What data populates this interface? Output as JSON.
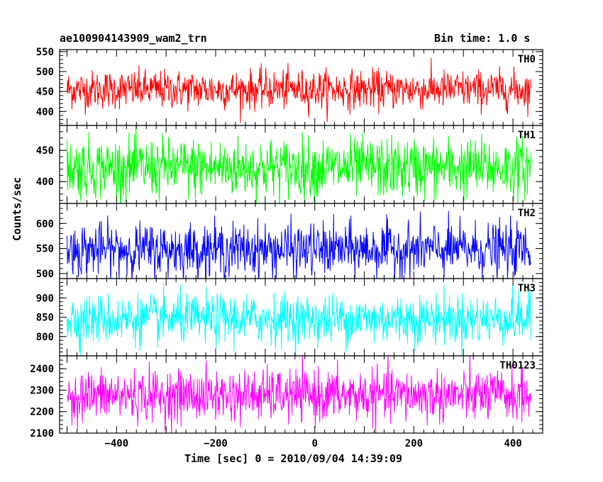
{
  "header": {
    "title": "ae100904143909_wam2_trn",
    "bin_time": "Bin time: 1.0 s"
  },
  "chart_data": {
    "type": "line",
    "title": "ae100904143909_wam2_trn",
    "subtitle": "Bin time: 1.0 s",
    "xlabel": "Time [sec] 0 = 2010/09/04 14:39:09",
    "ylabel": "Counts/sec",
    "xlim": [
      -515,
      460
    ],
    "x_ticks": [
      -400,
      -200,
      0,
      200,
      400
    ],
    "x_start": -500,
    "x_end": 436,
    "x_step": 1,
    "panels": [
      {
        "name": "TH0",
        "color": "#ff0000",
        "ylim": [
          365,
          555
        ],
        "yticks": [
          400,
          450,
          500,
          550
        ],
        "mean": 455,
        "sigma": 24
      },
      {
        "name": "TH1",
        "color": "#00ff00",
        "ylim": [
          365,
          490
        ],
        "yticks": [
          400,
          450
        ],
        "mean": 422,
        "sigma": 24
      },
      {
        "name": "TH2",
        "color": "#0000ff",
        "ylim": [
          490,
          640
        ],
        "yticks": [
          500,
          550,
          600
        ],
        "mean": 548,
        "sigma": 26
      },
      {
        "name": "TH3",
        "color": "#00ffff",
        "ylim": [
          750,
          950
        ],
        "yticks": [
          800,
          850,
          900
        ],
        "mean": 845,
        "sigma": 32
      },
      {
        "name": "TH0123",
        "color": "#ff00ff",
        "ylim": [
          2100,
          2460
        ],
        "yticks": [
          2100,
          2200,
          2300,
          2400
        ],
        "mean": 2275,
        "sigma": 60
      }
    ]
  }
}
